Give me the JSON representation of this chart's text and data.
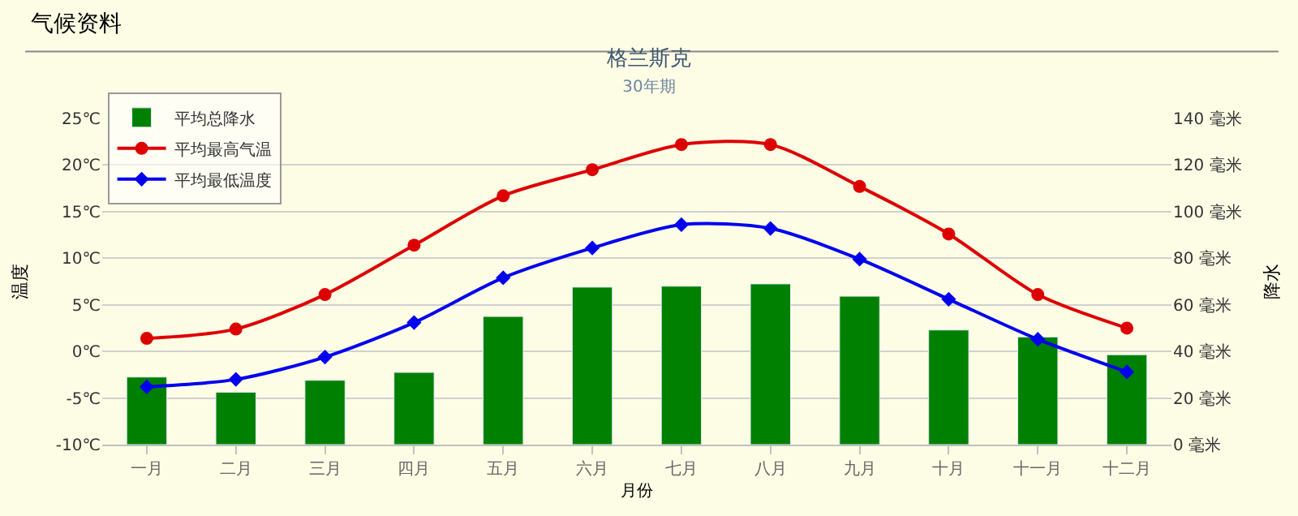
{
  "chart_data": {
    "type": "bar",
    "title": "格兰斯克",
    "subtitle": "30年期",
    "xlabel": "月份",
    "ylabel": "温度",
    "y2label": "降水",
    "annotations": [
      "气候资料"
    ],
    "categories": [
      "一月",
      "二月",
      "三月",
      "四月",
      "五月",
      "六月",
      "七月",
      "八月",
      "九月",
      "十月",
      "十一月",
      "十二月"
    ],
    "series": [
      {
        "name": "平均总降水",
        "axis": "y2",
        "color": "#008000",
        "values": [
          29,
          22.5,
          27.6,
          31,
          55,
          67.6,
          68,
          69,
          63.7,
          49.2,
          46.2,
          38.6
        ]
      },
      {
        "name": "平均最高气温",
        "type": "line",
        "marker": "circle",
        "color": "#dd0000",
        "values": [
          1.4,
          2.4,
          6.1,
          11.4,
          16.7,
          19.5,
          22.2,
          22.2,
          17.7,
          12.6,
          6.1,
          2.5
        ]
      },
      {
        "name": "平均最低温度",
        "type": "line",
        "marker": "diamond",
        "color": "#0000ee",
        "values": [
          -3.8,
          -3.0,
          -0.6,
          3.1,
          7.9,
          11.1,
          13.6,
          13.2,
          9.9,
          5.6,
          1.3,
          -2.2
        ]
      }
    ],
    "ylim": [
      -10,
      25
    ],
    "yticks": [
      {
        "value": -10,
        "label": "-10℃"
      },
      {
        "value": -5,
        "label": "-5℃"
      },
      {
        "value": 0,
        "label": "0℃"
      },
      {
        "value": 5,
        "label": "5℃"
      },
      {
        "value": 10,
        "label": "10℃"
      },
      {
        "value": 15,
        "label": "15℃"
      },
      {
        "value": 20,
        "label": "20℃"
      },
      {
        "value": 25,
        "label": "25℃"
      }
    ],
    "y2lim": [
      0,
      140
    ],
    "y2ticks": [
      {
        "value": 0,
        "label": "0 毫米"
      },
      {
        "value": 20,
        "label": "20 毫米"
      },
      {
        "value": 40,
        "label": "40 毫米"
      },
      {
        "value": 60,
        "label": "60 毫米"
      },
      {
        "value": 80,
        "label": "80 毫米"
      },
      {
        "value": 100,
        "label": "100 毫米"
      },
      {
        "value": 120,
        "label": "120 毫米"
      },
      {
        "value": 140,
        "label": "140 毫米"
      }
    ],
    "grid": "y",
    "legend": "top left",
    "line_style": "solid"
  }
}
